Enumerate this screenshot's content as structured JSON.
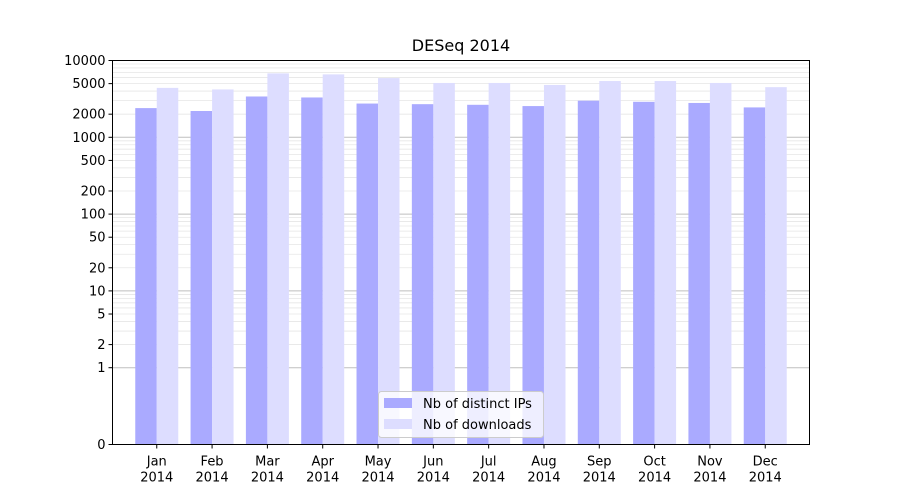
{
  "chart_data": {
    "type": "bar",
    "title": "DESeq 2014",
    "xlabel": "",
    "ylabel": "",
    "yscale": "symlog",
    "ylim": [
      0,
      10000
    ],
    "yticks": [
      "0",
      "1",
      "2",
      "5",
      "10",
      "20",
      "50",
      "100",
      "200",
      "500",
      "1000",
      "2000",
      "5000",
      "10000"
    ],
    "categories": [
      [
        "Jan",
        "2014"
      ],
      [
        "Feb",
        "2014"
      ],
      [
        "Mar",
        "2014"
      ],
      [
        "Apr",
        "2014"
      ],
      [
        "May",
        "2014"
      ],
      [
        "Jun",
        "2014"
      ],
      [
        "Jul",
        "2014"
      ],
      [
        "Aug",
        "2014"
      ],
      [
        "Sep",
        "2014"
      ],
      [
        "Oct",
        "2014"
      ],
      [
        "Nov",
        "2014"
      ],
      [
        "Dec",
        "2014"
      ]
    ],
    "series": [
      {
        "name": "Nb of distinct IPs",
        "color": "#aaaaff",
        "values": [
          2400,
          2200,
          3400,
          3300,
          2750,
          2700,
          2650,
          2550,
          3000,
          2900,
          2800,
          2450
        ]
      },
      {
        "name": "Nb of downloads",
        "color": "#ddddff",
        "values": [
          4400,
          4200,
          6800,
          6600,
          5900,
          5100,
          5100,
          4800,
          5400,
          5400,
          5100,
          4500
        ]
      }
    ],
    "legend": "lower-center",
    "grid": true
  }
}
